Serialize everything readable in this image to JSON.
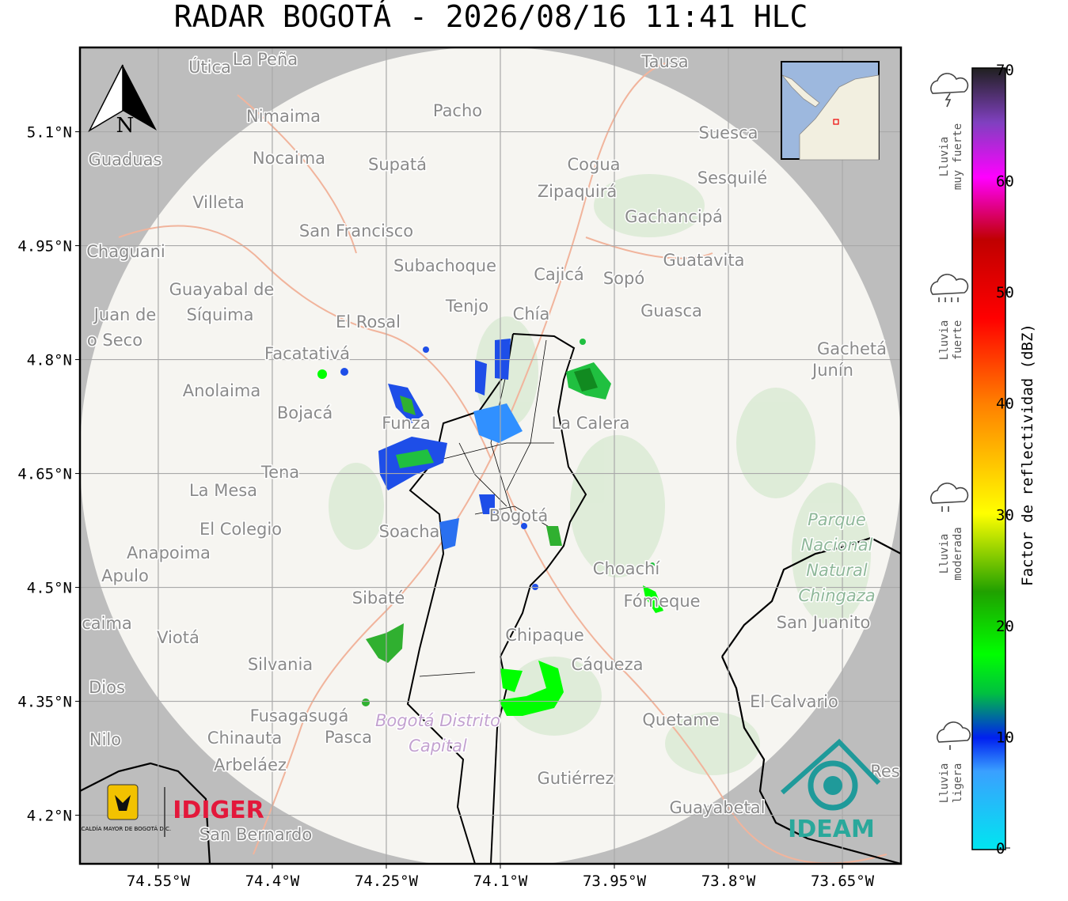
{
  "title": "RADAR BOGOTÁ - 2026/08/16 11:41 HLC",
  "map": {
    "xlim": [
      -74.653,
      -73.573
    ],
    "ylim": [
      4.136,
      5.211
    ],
    "lat_ticks": [
      {
        "value": 5.1,
        "label": "5.1°N"
      },
      {
        "value": 4.95,
        "label": "4.95°N"
      },
      {
        "value": 4.8,
        "label": "4.8°N"
      },
      {
        "value": 4.65,
        "label": "4.65°N"
      },
      {
        "value": 4.5,
        "label": "4.5°N"
      },
      {
        "value": 4.35,
        "label": "4.35°N"
      },
      {
        "value": 4.2,
        "label": "4.2°N"
      }
    ],
    "lon_ticks": [
      {
        "value": -74.55,
        "label": "74.55°W"
      },
      {
        "value": -74.4,
        "label": "74.4°W"
      },
      {
        "value": -74.25,
        "label": "74.25°W"
      },
      {
        "value": -74.1,
        "label": "74.1°W"
      },
      {
        "value": -73.95,
        "label": "73.95°W"
      },
      {
        "value": -73.8,
        "label": "73.8°W"
      },
      {
        "value": -73.65,
        "label": "73.65°W"
      }
    ],
    "north": "N",
    "places": [
      "Útica",
      "La Peña",
      "Tausa",
      "Pacho",
      "Nimaima",
      "Guaduas",
      "Nocaima",
      "Supatá",
      "Cogua",
      "Suesca",
      "Sesquilé",
      "Villeta",
      "Zipaquirá",
      "Gachancipá",
      "San Francisco",
      "Chaguani",
      "Guatavita",
      "Subachoque",
      "Cajicá",
      "Sopó",
      "Guayabal de",
      "Síquima",
      "Tenjo",
      "Chía",
      "Guasca",
      "Juan de",
      "o Seco",
      "El Rosal",
      "Facatativá",
      "Gachetá",
      "Junín",
      "Anolaima",
      "Bojacá",
      "Funza",
      "La Calera",
      "Tena",
      "La Mesa",
      "Bogotá",
      "El Colegio",
      "Soacha",
      "Anapoima",
      "Apulo",
      "Choachí",
      "Sibaté",
      "Fómeque",
      "San Juanito",
      "caima",
      "Viotá",
      "Chipaque",
      "Silvania",
      "Cáqueza",
      "Dios",
      "El Calvario",
      "Fusagasugá",
      "Quetame",
      "Nilo",
      "Chinauta",
      "Pasca",
      "Arbeláez",
      "Gutiérrez",
      "Res",
      "Guayabetal",
      "San Bernardo"
    ],
    "park": [
      "Parque",
      "Nacional",
      "Natural",
      "Chingaza"
    ],
    "district": [
      "Bogotá Distrito",
      "Capital"
    ],
    "logos": {
      "alcaldia": "ALCALDÍA MAYOR DE BOGOTÁ D.C.",
      "idiger": "IDIGER",
      "ideam": "IDEAM"
    }
  },
  "colorbar": {
    "label": "Factor de reflectividad (dBZ)",
    "lim": [
      0,
      70
    ],
    "ticks": [
      0,
      10,
      20,
      30,
      40,
      50,
      60,
      70
    ]
  },
  "rain_categories": [
    [
      "Lluvia",
      "muy fuerte"
    ],
    [
      "Lluvia",
      "fuerte"
    ],
    [
      "Lluvia",
      "moderada"
    ],
    [
      "Lluvia",
      "ligera"
    ]
  ]
}
